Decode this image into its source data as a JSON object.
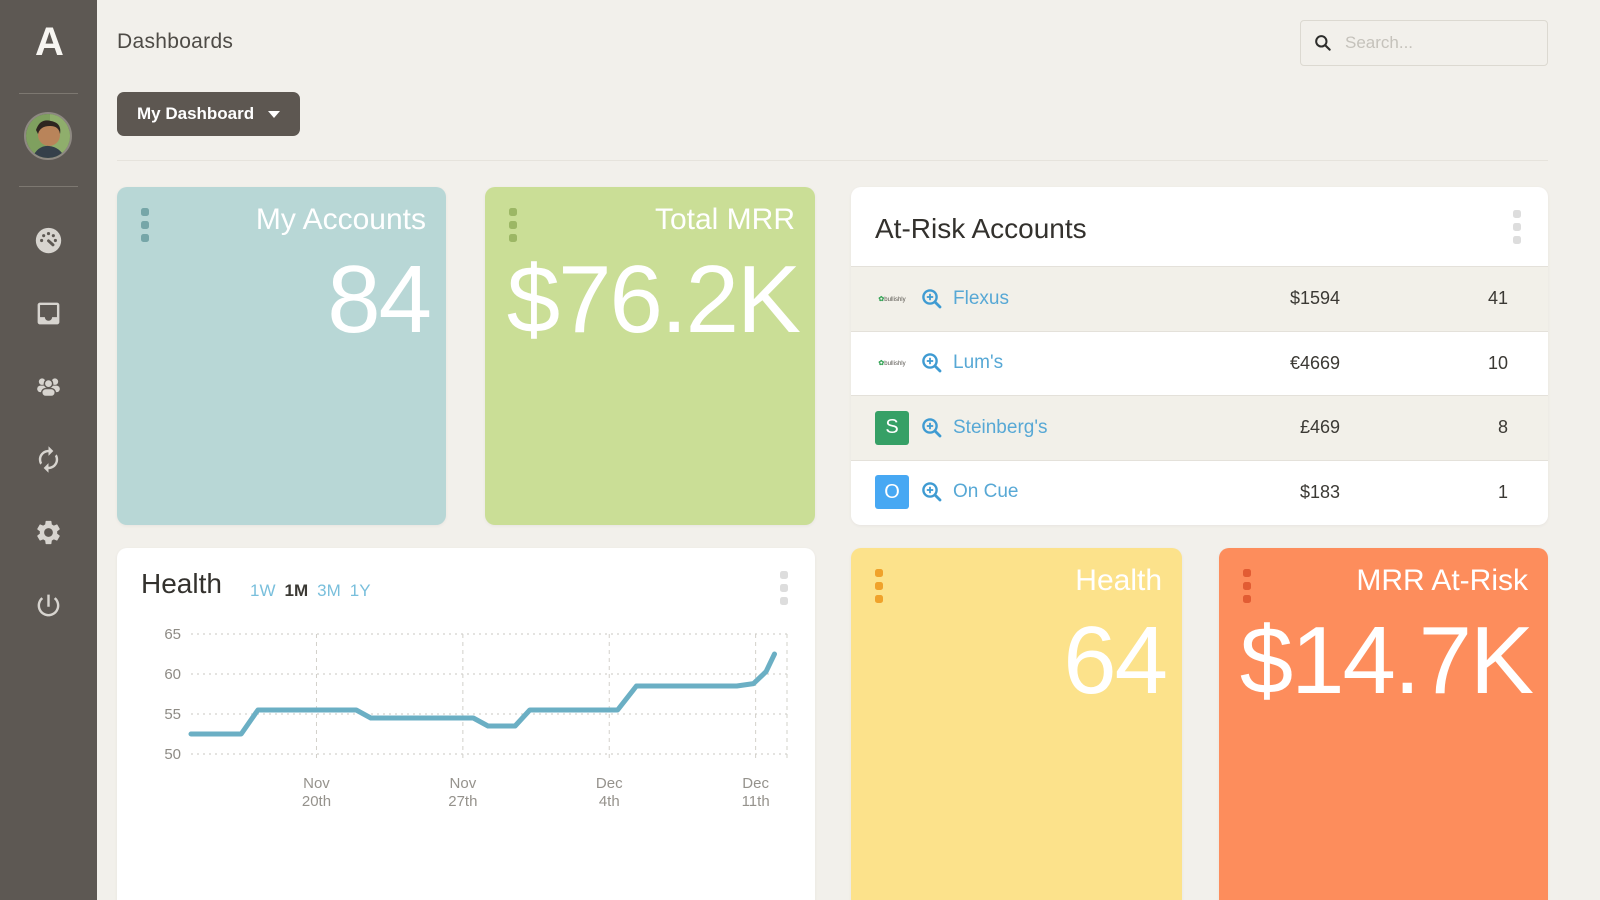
{
  "header": {
    "title": "Dashboards",
    "search_placeholder": "Search...",
    "dashboard_button": "My Dashboard"
  },
  "sidebar": {
    "logo": "A",
    "icons": [
      "dashboard-gauge",
      "inbox",
      "customers",
      "sync",
      "settings",
      "power"
    ]
  },
  "kpi_cards": [
    {
      "title": "My Accounts",
      "value": "84",
      "bg": "#b8d7d6",
      "grip": "#76a6a8"
    },
    {
      "title": "Total MRR",
      "value": "$76.2K",
      "bg": "#cade96",
      "grip": "#9cb765"
    },
    {
      "title": "Health",
      "value": "64",
      "bg": "#fce28b",
      "grip": "#f0a22b"
    },
    {
      "title": "MRR At-Risk",
      "value": "$14.7K",
      "bg": "#fd8d5c",
      "grip": "#e25c33"
    }
  ],
  "at_risk": {
    "title": "At-Risk Accounts",
    "rows": [
      {
        "name": "Flexus",
        "logo": {
          "type": "wordmark",
          "text": "bullishly"
        },
        "value": "$1594",
        "count": "41"
      },
      {
        "name": "Lum's",
        "logo": {
          "type": "wordmark",
          "text": "bullishly"
        },
        "value": "€4669",
        "count": "10"
      },
      {
        "name": "Steinberg's",
        "logo": {
          "type": "letter",
          "letter": "S",
          "color": "#36a066"
        },
        "value": "£469",
        "count": "8"
      },
      {
        "name": "On Cue",
        "logo": {
          "type": "letter",
          "letter": "O",
          "color": "#47a8f3"
        },
        "value": "$183",
        "count": "1"
      }
    ]
  },
  "chart_data": {
    "type": "line",
    "title": "Health",
    "tabs": [
      "1W",
      "1M",
      "3M",
      "1Y"
    ],
    "active_tab": "1M",
    "x": [
      0,
      2.4,
      3.2,
      7.9,
      8.6,
      13.5,
      14.2,
      15.5,
      16.2,
      20.4,
      21.3,
      26.1,
      26.9,
      27.5,
      27.9
    ],
    "values": [
      52.5,
      52.5,
      55.5,
      55.5,
      54.5,
      54.5,
      53.5,
      53.5,
      55.5,
      55.5,
      58.5,
      58.5,
      58.8,
      60.3,
      62.5
    ],
    "xticks": [
      {
        "pos": 6,
        "label": "Nov 20th"
      },
      {
        "pos": 13,
        "label": "Nov 27th"
      },
      {
        "pos": 20,
        "label": "Dec 4th"
      },
      {
        "pos": 27,
        "label": "Dec 11th"
      }
    ],
    "yticks": [
      50,
      55,
      60,
      65
    ],
    "xlim": [
      0,
      28.5
    ],
    "ylim": [
      48.5,
      66.5
    ],
    "line_color": "#6bafc4",
    "grid": "dashed",
    "legend": "none"
  },
  "colors": {
    "page_bg": "#f2f0eb",
    "sidebar_bg": "#5d5853",
    "link_blue": "#57a8d5",
    "row_alt": "#f2f0e9"
  }
}
